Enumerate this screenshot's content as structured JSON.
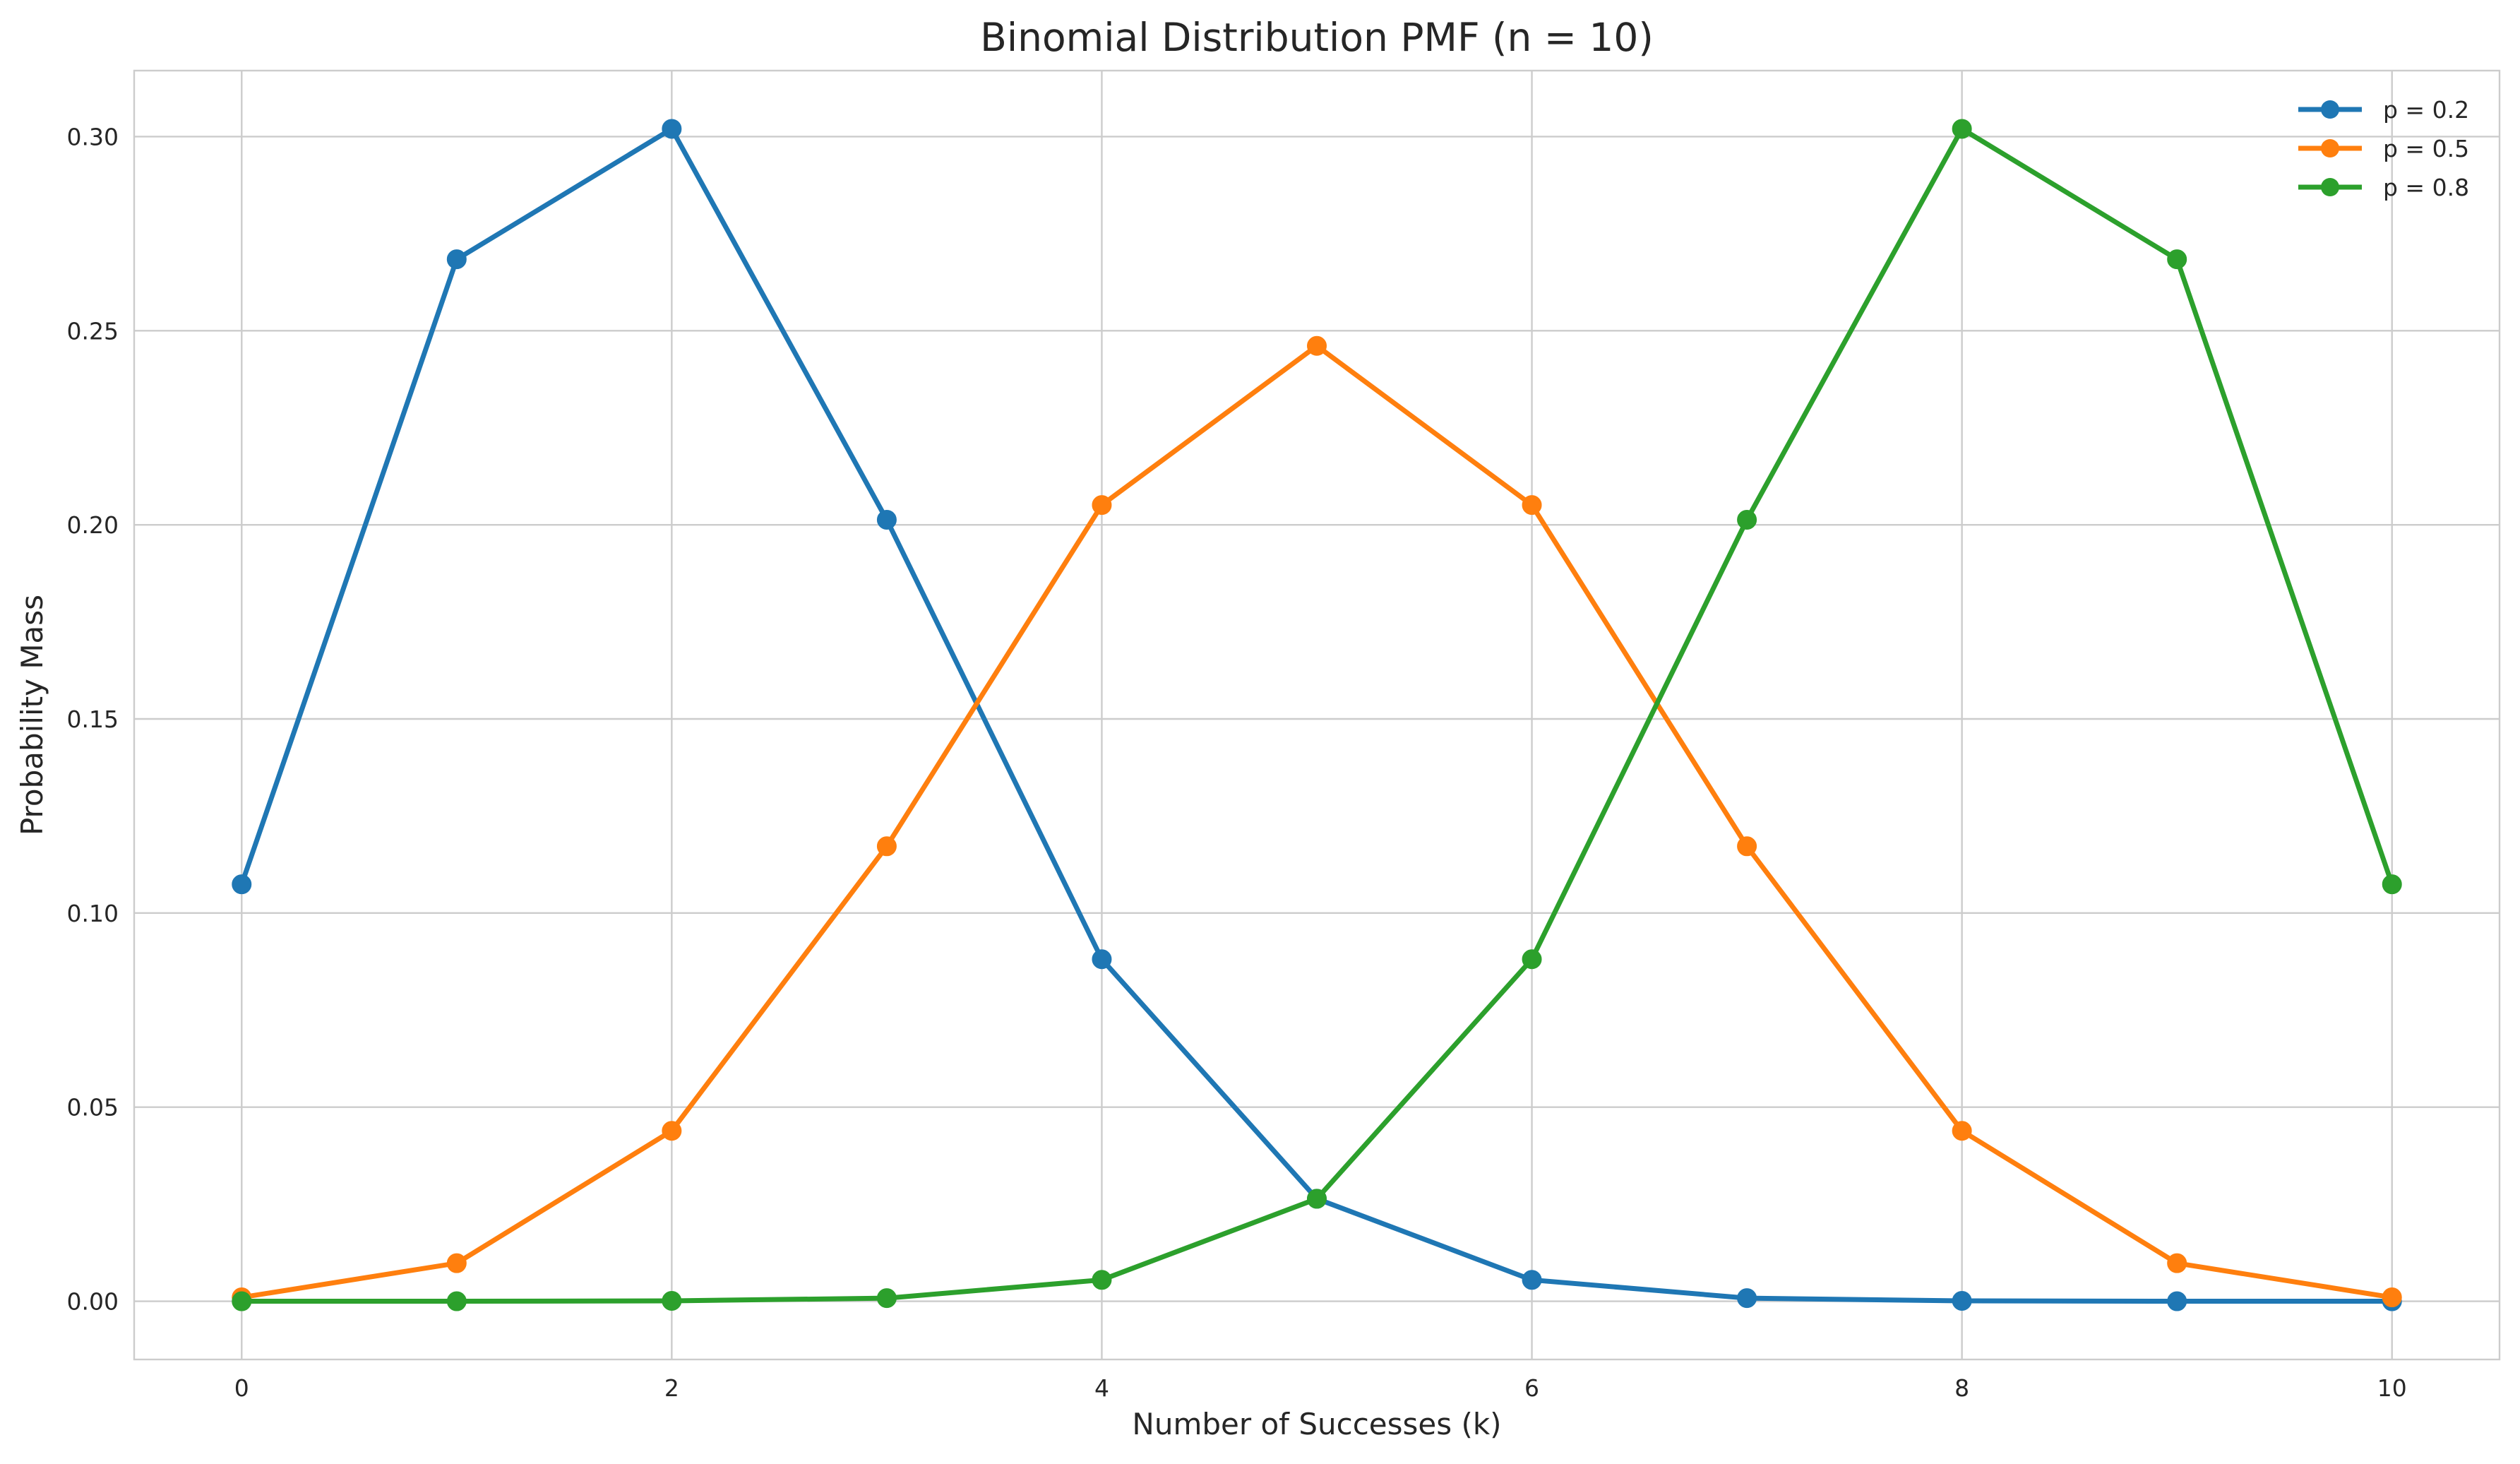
{
  "chart_data": {
    "type": "line",
    "title": "Binomial Distribution PMF (n = 10)",
    "xlabel": "Number of Successes (k)",
    "ylabel": "Probability Mass",
    "x": [
      0,
      1,
      2,
      3,
      4,
      5,
      6,
      7,
      8,
      9,
      10
    ],
    "xlim": [
      -0.5,
      10.5
    ],
    "ylim": [
      -0.015,
      0.317
    ],
    "xticks": [
      0,
      2,
      4,
      6,
      8,
      10
    ],
    "xtick_labels": [
      "0",
      "2",
      "4",
      "6",
      "8",
      "10"
    ],
    "yticks": [
      0,
      0.05,
      0.1,
      0.15,
      0.2,
      0.25,
      0.3
    ],
    "ytick_labels": [
      "0.00",
      "0.05",
      "0.10",
      "0.15",
      "0.20",
      "0.25",
      "0.30"
    ],
    "grid": true,
    "legend_position": "top-right",
    "series": [
      {
        "name": "p = 0.2",
        "color": "#1f77b4",
        "marker": "circle",
        "values": [
          0.1074,
          0.2684,
          0.302,
          0.2013,
          0.0881,
          0.0264,
          0.0055,
          0.0008,
          0.0001,
          0.0,
          0.0
        ]
      },
      {
        "name": "p = 0.5",
        "color": "#ff7f0e",
        "marker": "circle",
        "values": [
          0.001,
          0.0098,
          0.0439,
          0.1172,
          0.2051,
          0.2461,
          0.2051,
          0.1172,
          0.0439,
          0.0098,
          0.001
        ]
      },
      {
        "name": "p = 0.8",
        "color": "#2ca02c",
        "marker": "circle",
        "values": [
          0.0,
          0.0,
          0.0001,
          0.0008,
          0.0055,
          0.0264,
          0.0881,
          0.2013,
          0.302,
          0.2684,
          0.1074
        ]
      }
    ]
  }
}
